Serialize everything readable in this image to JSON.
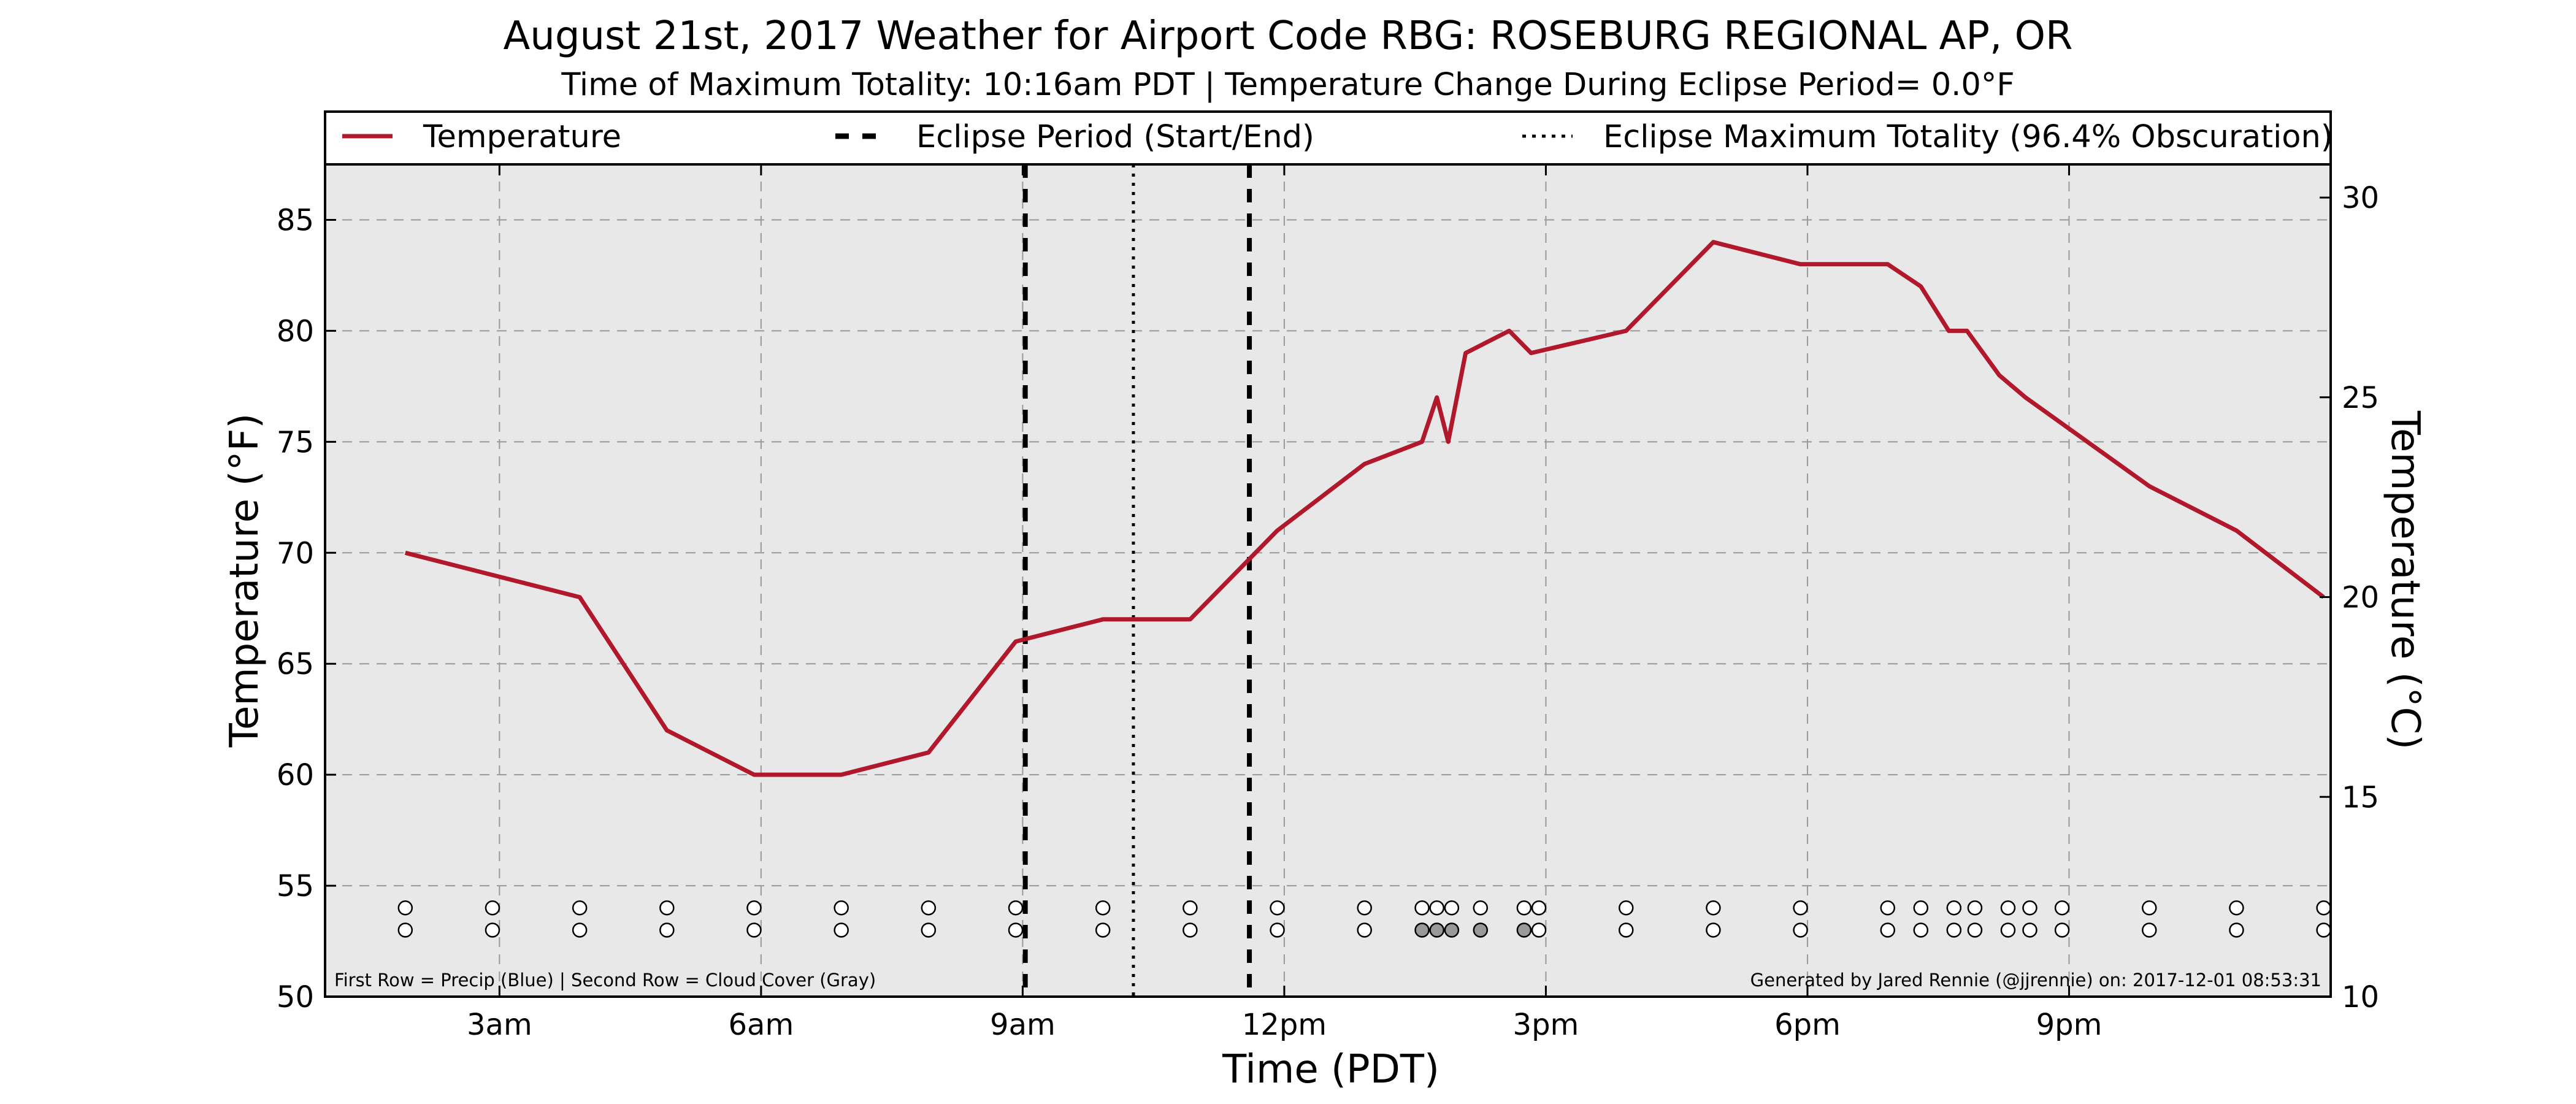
{
  "chart_data": {
    "type": "line",
    "title": "August 21st, 2017 Weather for Airport Code RBG: ROSEBURG REGIONAL AP, OR",
    "subtitle": "Time of Maximum Totality: 10:16am PDT | Temperature Change During Eclipse Period= 0.0°F",
    "xlabel": "Time (PDT)",
    "ylabel": "Temperature (°F)",
    "ylabel_right": "Temperature (°C)",
    "xlim": [
      1.0,
      24.0
    ],
    "ylim": [
      50,
      87.5
    ],
    "ylim_right_c": [
      10,
      30.83
    ],
    "grid": true,
    "legend_placement": "top",
    "x_ticks": [
      {
        "x": 3,
        "label": "3am"
      },
      {
        "x": 6,
        "label": "6am"
      },
      {
        "x": 9,
        "label": "9am"
      },
      {
        "x": 12,
        "label": "12pm"
      },
      {
        "x": 15,
        "label": "3pm"
      },
      {
        "x": 18,
        "label": "6pm"
      },
      {
        "x": 21,
        "label": "9pm"
      }
    ],
    "y_ticks": [
      50,
      55,
      60,
      65,
      70,
      75,
      80,
      85
    ],
    "y_ticks_right_c": [
      10,
      15,
      20,
      25,
      30
    ],
    "series": [
      {
        "name": "Temperature",
        "color": "#b2182b",
        "x": [
          1.92,
          2.92,
          3.92,
          4.92,
          5.92,
          6.92,
          7.92,
          8.92,
          9.92,
          10.92,
          11.92,
          12.92,
          13.58,
          13.75,
          13.88,
          14.08,
          14.58,
          14.83,
          15.92,
          16.92,
          17.92,
          18.92,
          19.3,
          19.62,
          19.83,
          20.2,
          20.5,
          21.92,
          22.92,
          23.92
        ],
        "y": [
          70,
          69,
          68,
          62,
          60,
          60,
          61,
          66,
          67,
          67,
          71,
          74,
          75,
          77,
          75,
          79,
          80,
          79,
          80,
          84,
          83,
          83,
          82,
          80,
          80,
          78,
          77,
          73,
          71,
          68
        ]
      }
    ],
    "eclipse_start": 9.03,
    "eclipse_end": 11.6,
    "eclipse_max": 10.27,
    "legend": {
      "temperature": "Temperature",
      "eclipse_period": "Eclipse Period (Start/End)",
      "eclipse_max": "Eclipse Maximum Totality (96.4% Obscuration)"
    },
    "observation_markers": {
      "x": [
        1.92,
        2.92,
        3.92,
        4.92,
        5.92,
        6.92,
        7.92,
        8.92,
        9.92,
        10.92,
        11.92,
        12.92,
        13.58,
        13.75,
        13.92,
        14.25,
        14.75,
        14.92,
        15.92,
        16.92,
        17.92,
        18.92,
        19.3,
        19.68,
        19.92,
        20.3,
        20.55,
        20.92,
        21.92,
        22.92,
        23.92
      ],
      "precip_color": [
        "#ffffff",
        "#ffffff",
        "#ffffff",
        "#ffffff",
        "#ffffff",
        "#ffffff",
        "#ffffff",
        "#ffffff",
        "#ffffff",
        "#ffffff",
        "#ffffff",
        "#ffffff",
        "#ffffff",
        "#ffffff",
        "#ffffff",
        "#ffffff",
        "#ffffff",
        "#ffffff",
        "#ffffff",
        "#ffffff",
        "#ffffff",
        "#ffffff",
        "#ffffff",
        "#ffffff",
        "#ffffff",
        "#ffffff",
        "#ffffff",
        "#ffffff",
        "#ffffff",
        "#ffffff",
        "#ffffff"
      ],
      "cloud_color": [
        "#ffffff",
        "#ffffff",
        "#ffffff",
        "#ffffff",
        "#ffffff",
        "#ffffff",
        "#ffffff",
        "#ffffff",
        "#ffffff",
        "#ffffff",
        "#ffffff",
        "#ffffff",
        "#999999",
        "#999999",
        "#999999",
        "#999999",
        "#999999",
        "#ffffff",
        "#ffffff",
        "#ffffff",
        "#ffffff",
        "#ffffff",
        "#ffffff",
        "#ffffff",
        "#ffffff",
        "#ffffff",
        "#ffffff",
        "#ffffff",
        "#ffffff",
        "#ffffff",
        "#ffffff"
      ]
    },
    "footnote_left": "First Row = Precip (Blue) | Second Row = Cloud Cover (Gray)",
    "footnote_right": "Generated by Jared Rennie (@jjrennie) on: 2017-12-01 08:53:31"
  }
}
